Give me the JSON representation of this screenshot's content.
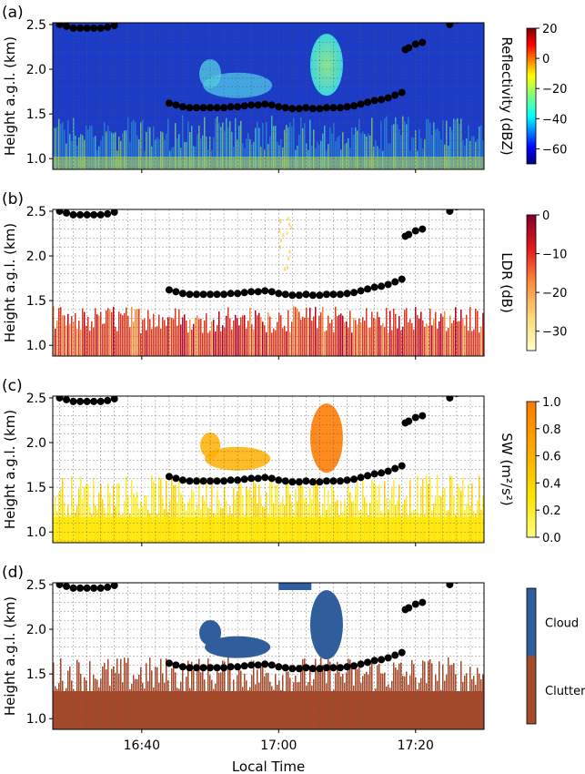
{
  "figure": {
    "xlabel": "Local Time",
    "x_ticks": [
      "16:40",
      "17:00",
      "17:20"
    ]
  },
  "chart_data": [
    {
      "type": "heatmap",
      "panel_label": "(a)",
      "ylabel": "Height a.g.l. (km)",
      "colorbar_label": "Reflectivity (dBZ)",
      "colorbar_ticks": [
        "20",
        "0",
        "−20",
        "−40",
        "−60"
      ],
      "colorbar_range": [
        -70,
        20
      ],
      "colormap": "jet",
      "xlim": [
        "16:27",
        "17:30"
      ],
      "ylim": [
        0.88,
        2.52
      ],
      "y_ticks": [
        "1.0",
        "1.5",
        "2.0",
        "2.5"
      ],
      "grid": true,
      "markers": "black dots: cloud base height"
    },
    {
      "type": "heatmap",
      "panel_label": "(b)",
      "ylabel": "Height a.g.l. (km)",
      "colorbar_label": "LDR (dB)",
      "colorbar_ticks": [
        "0",
        "−10",
        "−20",
        "−30"
      ],
      "colorbar_range": [
        -35,
        0
      ],
      "colormap": "YlOrRd",
      "xlim": [
        "16:27",
        "17:30"
      ],
      "ylim": [
        0.88,
        2.52
      ],
      "y_ticks": [
        "1.0",
        "1.5",
        "2.0",
        "2.5"
      ],
      "grid": true
    },
    {
      "type": "heatmap",
      "panel_label": "(c)",
      "ylabel": "Height a.g.l. (km)",
      "colorbar_label": "SW (m²/s²)",
      "colorbar_ticks": [
        "1.0",
        "0.8",
        "0.6",
        "0.4",
        "0.2",
        "0.0"
      ],
      "colorbar_range": [
        0,
        1
      ],
      "colormap": "Wistia",
      "xlim": [
        "16:27",
        "17:30"
      ],
      "ylim": [
        0.88,
        2.52
      ],
      "y_ticks": [
        "1.0",
        "1.5",
        "2.0",
        "2.5"
      ],
      "grid": true
    },
    {
      "type": "heatmap",
      "panel_label": "(d)",
      "ylabel": "Height a.g.l. (km)",
      "colorbar_categories": [
        "Cloud",
        "Clutter"
      ],
      "category_colors": {
        "Cloud": "#2e5e9e",
        "Clutter": "#a44a2a"
      },
      "xlim": [
        "16:27",
        "17:30"
      ],
      "ylim": [
        0.88,
        2.52
      ],
      "y_ticks": [
        "1.0",
        "1.5",
        "2.0",
        "2.5"
      ],
      "grid": true
    }
  ],
  "cloud_base": {
    "time_min": [
      1,
      2,
      3,
      4,
      5,
      6,
      7,
      8,
      9,
      17,
      18,
      19,
      20,
      21,
      22,
      23,
      24,
      25,
      26,
      27,
      28,
      29,
      30,
      31,
      32,
      33,
      34,
      35,
      36,
      37,
      38,
      39,
      40,
      41,
      42,
      43,
      44,
      45,
      46,
      47,
      48,
      49,
      50,
      51,
      51.5,
      52,
      53,
      54,
      58,
      59
    ],
    "height_km": [
      2.5,
      2.48,
      2.46,
      2.46,
      2.46,
      2.46,
      2.46,
      2.47,
      2.49,
      1.62,
      1.6,
      1.58,
      1.57,
      1.57,
      1.57,
      1.57,
      1.57,
      1.57,
      1.58,
      1.58,
      1.59,
      1.6,
      1.6,
      1.61,
      1.6,
      1.58,
      1.57,
      1.56,
      1.56,
      1.57,
      1.56,
      1.56,
      1.57,
      1.57,
      1.57,
      1.58,
      1.59,
      1.61,
      1.63,
      1.65,
      1.66,
      1.68,
      1.71,
      1.74,
      2.22,
      2.24,
      2.28,
      2.3,
      2.5,
      2.55
    ]
  }
}
